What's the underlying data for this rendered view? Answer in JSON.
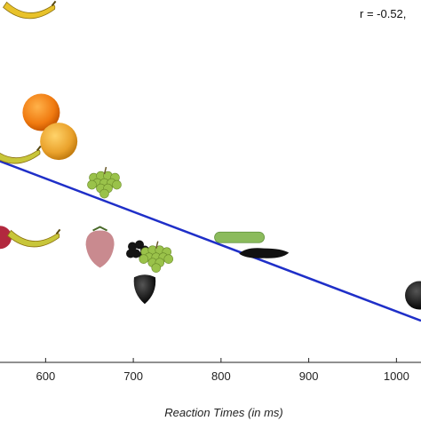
{
  "chart_data": {
    "type": "scatter",
    "title": "",
    "xlabel": "Reaction Times (in ms)",
    "ylabel": "",
    "annotation": "r = -0.52,",
    "x_ticks": [
      600,
      700,
      800,
      900,
      1000
    ],
    "xlim": [
      548,
      1028
    ],
    "ylim": [
      0,
      1
    ],
    "grid": false,
    "regression_line": {
      "x1": 548,
      "y1": 0.555,
      "x2": 1028,
      "y2": 0.115,
      "color": "#1f2fc8"
    },
    "points": [
      {
        "item": "banana",
        "x": 580,
        "y": 0.955
      },
      {
        "item": "orange",
        "x": 595,
        "y": 0.69
      },
      {
        "item": "orange",
        "x": 615,
        "y": 0.61
      },
      {
        "item": "banana",
        "x": 563,
        "y": 0.555
      },
      {
        "item": "grapes",
        "x": 667,
        "y": 0.495
      },
      {
        "item": "apple",
        "x": 548,
        "y": 0.345
      },
      {
        "item": "banana",
        "x": 585,
        "y": 0.325
      },
      {
        "item": "strawberry",
        "x": 662,
        "y": 0.315
      },
      {
        "item": "blackberries",
        "x": 705,
        "y": 0.31
      },
      {
        "item": "grapes",
        "x": 726,
        "y": 0.29
      },
      {
        "item": "cucumber",
        "x": 821,
        "y": 0.345
      },
      {
        "item": "eggplant",
        "x": 849,
        "y": 0.3
      },
      {
        "item": "eggplant",
        "x": 713,
        "y": 0.215
      },
      {
        "item": "plum",
        "x": 1026,
        "y": 0.185
      }
    ]
  }
}
